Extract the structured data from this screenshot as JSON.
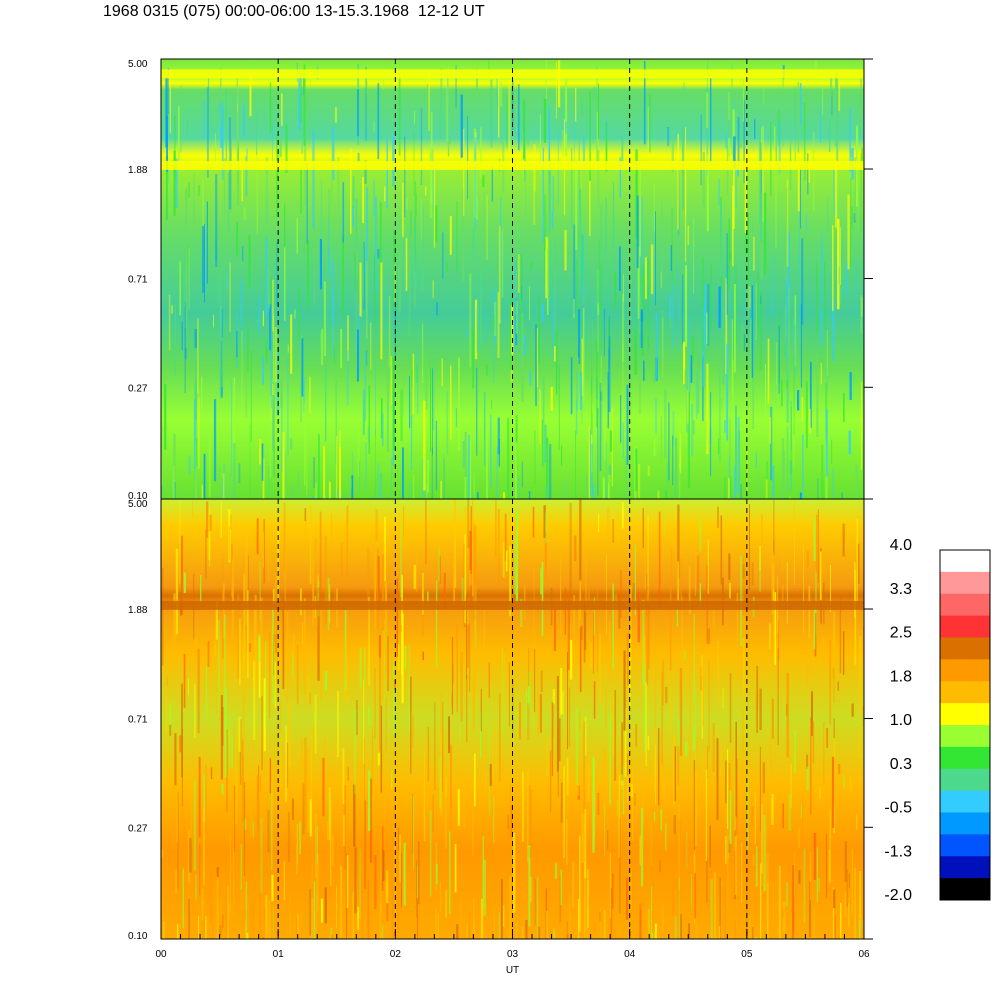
{
  "title": "1968 0315 (075) 00:00-06:00 13-15.3.1968  12-12 UT",
  "chart_data": [
    {
      "type": "heatmap",
      "panel": "top",
      "y_scale": "log",
      "y_ticks": [
        "5.00",
        "1.88",
        "0.71",
        "0.27",
        "0.10"
      ],
      "ylim": [
        0.1,
        5.0
      ],
      "x_ticks": [
        "00",
        "01",
        "02",
        "03",
        "04",
        "05",
        "06"
      ],
      "xlim": [
        0,
        6
      ],
      "dashed_hour_lines": [
        1,
        2,
        3,
        4,
        5
      ],
      "features": [
        {
          "description": "bright yellow band",
          "y": 4.4
        },
        {
          "description": "bright yellow band",
          "y": 1.95
        }
      ]
    },
    {
      "type": "heatmap",
      "panel": "bottom",
      "y_scale": "log",
      "y_ticks": [
        "5.00",
        "1.88",
        "0.71",
        "0.27",
        "0.10"
      ],
      "ylim": [
        0.1,
        5.0
      ],
      "x_ticks": [
        "00",
        "01",
        "02",
        "03",
        "04",
        "05",
        "06"
      ],
      "xlim": [
        0,
        6
      ],
      "xlabel": "UT",
      "dashed_hour_lines": [
        1,
        2,
        3,
        4,
        5
      ],
      "features": [
        {
          "description": "dark orange band",
          "y": 1.95
        }
      ]
    }
  ],
  "colorbar": {
    "labels": [
      "4.0",
      "3.3",
      "2.5",
      "1.8",
      "1.0",
      "0.3",
      "-0.5",
      "-1.3",
      "-2.0"
    ],
    "colors": [
      "#ffffff",
      "#ff9999",
      "#ff6666",
      "#ff3333",
      "#d97000",
      "#ff9900",
      "#ffbb00",
      "#ffff00",
      "#99ff33",
      "#33e633",
      "#4dd98c",
      "#33ccff",
      "#0099ff",
      "#0055ff",
      "#0011bb",
      "#000000"
    ]
  }
}
